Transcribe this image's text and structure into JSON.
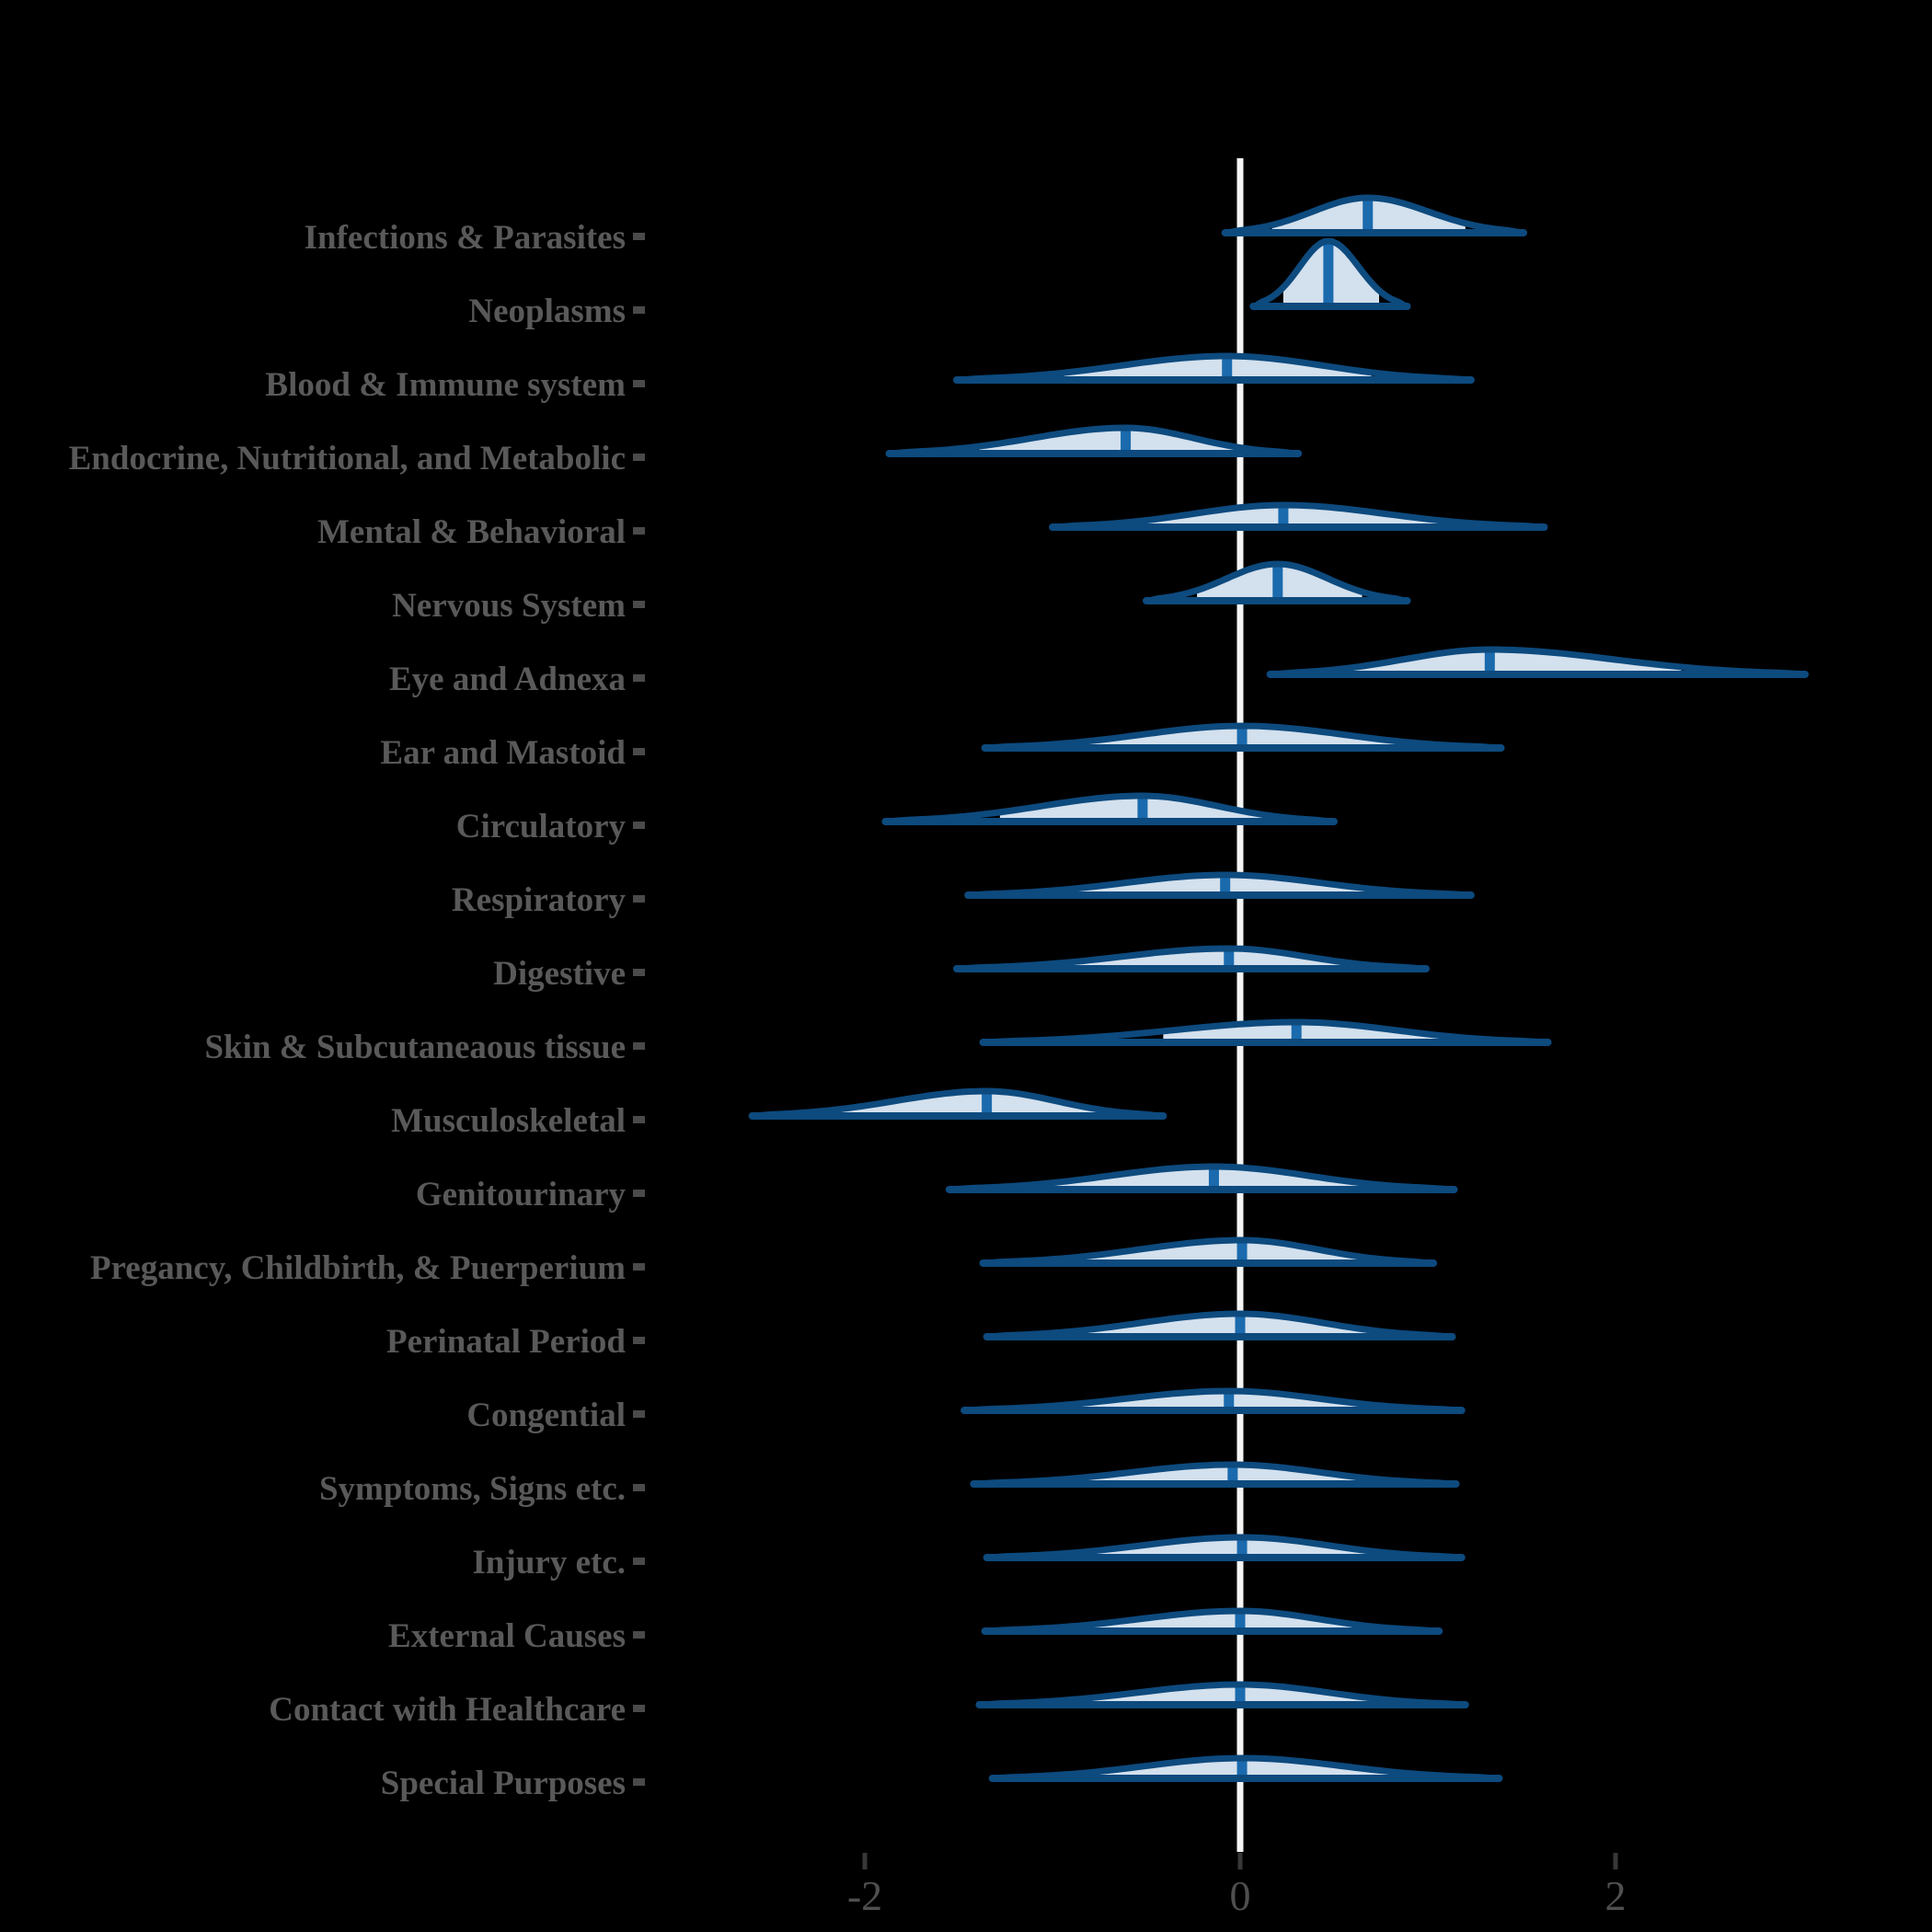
{
  "chart_data": {
    "type": "ridgeline_density",
    "title": "",
    "xlabel": "",
    "legend": null,
    "grid": false,
    "x_axis": {
      "range": [
        -3.85,
        3.65
      ],
      "zero_reference_line": true,
      "ticks": [
        {
          "value": -2,
          "label": "-2"
        },
        {
          "value": 0,
          "label": "0"
        },
        {
          "value": 2,
          "label": "2"
        }
      ]
    },
    "colors": {
      "background": "#000000",
      "outline": "#0d4a7e",
      "fill": "#d3e0ed",
      "median_bar": "#1a6aad",
      "zero_line": "#f4f4f4",
      "label_text": "#595959",
      "label_square": "#4a4a4a",
      "tick_text": "#4f4f4f",
      "tick_mark": "#383838"
    },
    "categories": [
      {
        "label": "Infections & Parasites",
        "min": -0.07,
        "max": 1.5,
        "median": 0.68,
        "fill_lo": 0.17,
        "fill_hi": 1.2,
        "peak": 38
      },
      {
        "label": "Neoplasms",
        "min": 0.08,
        "max": 0.88,
        "median": 0.47,
        "fill_lo": 0.23,
        "fill_hi": 0.74,
        "peak": 71
      },
      {
        "label": "Blood & Immune system",
        "min": -1.5,
        "max": 1.22,
        "median": -0.07,
        "fill_lo": -0.94,
        "fill_hi": 0.7,
        "peak": 26
      },
      {
        "label": "Endocrine, Nutritional, and Metabolic",
        "min": -1.86,
        "max": 0.3,
        "median": -0.61,
        "fill_lo": -1.39,
        "fill_hi": 0.07,
        "peak": 28
      },
      {
        "label": "Mental & Behavioral",
        "min": -0.99,
        "max": 1.61,
        "median": 0.23,
        "fill_lo": -0.55,
        "fill_hi": 1.06,
        "peak": 24
      },
      {
        "label": "Nervous System",
        "min": -0.49,
        "max": 0.88,
        "median": 0.2,
        "fill_lo": -0.23,
        "fill_hi": 0.65,
        "peak": 40
      },
      {
        "label": "Eye and Adnexa",
        "min": 0.17,
        "max": 3.0,
        "median": 1.33,
        "fill_lo": 0.5,
        "fill_hi": 2.35,
        "peak": 27
      },
      {
        "label": "Ear and Mastoid",
        "min": -1.35,
        "max": 1.38,
        "median": 0.01,
        "fill_lo": -0.82,
        "fill_hi": 0.83,
        "peak": 24
      },
      {
        "label": "Circulatory",
        "min": -1.88,
        "max": 0.49,
        "median": -0.52,
        "fill_lo": -1.28,
        "fill_hi": 0.16,
        "peak": 28
      },
      {
        "label": "Respiratory",
        "min": -1.44,
        "max": 1.22,
        "median": -0.08,
        "fill_lo": -0.94,
        "fill_hi": 0.73,
        "peak": 22
      },
      {
        "label": "Digestive",
        "min": -1.5,
        "max": 0.98,
        "median": -0.06,
        "fill_lo": -0.91,
        "fill_hi": 0.74,
        "peak": 22
      },
      {
        "label": "Skin & Subcutaneaous tissue",
        "min": -1.36,
        "max": 1.63,
        "median": 0.3,
        "fill_lo": -0.41,
        "fill_hi": 1.1,
        "peak": 22
      },
      {
        "label": "Musculoskeletal",
        "min": -2.59,
        "max": -0.42,
        "median": -1.35,
        "fill_lo": -2.13,
        "fill_hi": -0.7,
        "peak": 27
      },
      {
        "label": "Genitourinary",
        "min": -1.54,
        "max": 1.13,
        "median": -0.14,
        "fill_lo": -0.99,
        "fill_hi": 0.63,
        "peak": 25
      },
      {
        "label": "Pregancy, Childbirth, & Puerperium",
        "min": -1.36,
        "max": 1.02,
        "median": 0.01,
        "fill_lo": -0.82,
        "fill_hi": 0.83,
        "peak": 25
      },
      {
        "label": "Perinatal Period",
        "min": -1.34,
        "max": 1.12,
        "median": 0.0,
        "fill_lo": -0.81,
        "fill_hi": 0.81,
        "peak": 25
      },
      {
        "label": "Congential",
        "min": -1.46,
        "max": 1.17,
        "median": -0.06,
        "fill_lo": -0.95,
        "fill_hi": 0.73,
        "peak": 21
      },
      {
        "label": "Symptoms, Signs etc.",
        "min": -1.41,
        "max": 1.14,
        "median": -0.04,
        "fill_lo": -0.87,
        "fill_hi": 0.75,
        "peak": 21
      },
      {
        "label": "Injury etc.",
        "min": -1.34,
        "max": 1.17,
        "median": 0.01,
        "fill_lo": -0.83,
        "fill_hi": 0.83,
        "peak": 22
      },
      {
        "label": "External Causes",
        "min": -1.35,
        "max": 1.05,
        "median": 0.0,
        "fill_lo": -0.8,
        "fill_hi": 0.78,
        "peak": 22
      },
      {
        "label": "Contact with Healthcare",
        "min": -1.38,
        "max": 1.19,
        "median": 0.0,
        "fill_lo": -0.84,
        "fill_hi": 0.83,
        "peak": 22
      },
      {
        "label": "Special Purposes",
        "min": -1.31,
        "max": 1.37,
        "median": 0.01,
        "fill_lo": -0.82,
        "fill_hi": 0.83,
        "peak": 22
      }
    ]
  }
}
